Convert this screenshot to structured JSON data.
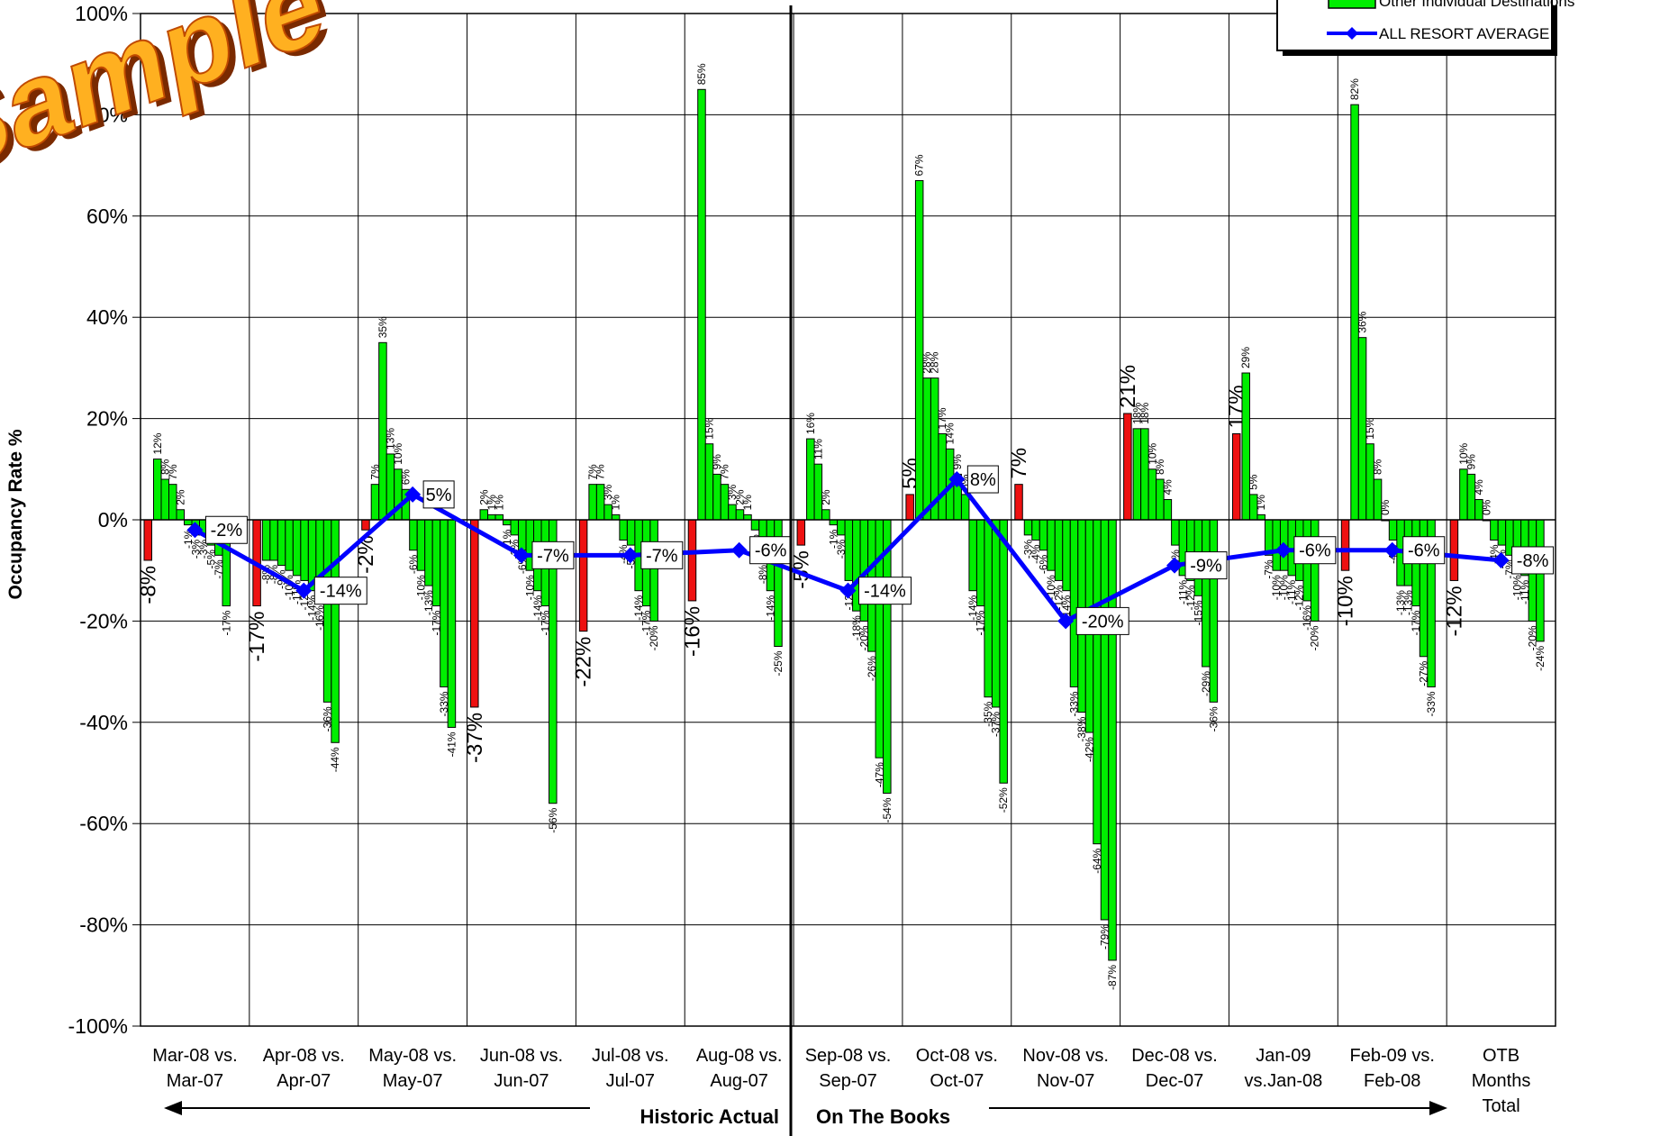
{
  "watermark": "Sample",
  "chart_data": {
    "type": "bar",
    "ylabel": "Occupancy Rate %",
    "ylim": [
      -100,
      100
    ],
    "yticks": [
      "-100%",
      "-80%",
      "-60%",
      "-40%",
      "-20%",
      "0%",
      "20%",
      "40%",
      "60%",
      "80%",
      "100%"
    ],
    "grid": true,
    "legend_position": "top-right",
    "legend": [
      {
        "label": "Other Individual Destinations",
        "color": "#00ee00"
      },
      {
        "label": "ALL RESORT AVERAGE",
        "color": "#0000ff"
      }
    ],
    "categories": [
      [
        "Mar-08 vs.",
        "Mar-07"
      ],
      [
        "Apr-08 vs.",
        "Apr-07"
      ],
      [
        "May-08 vs.",
        "May-07"
      ],
      [
        "Jun-08 vs.",
        "Jun-07"
      ],
      [
        "Jul-08 vs.",
        "Jul-07"
      ],
      [
        "Aug-08 vs.",
        "Aug-07"
      ],
      [
        "Sep-08 vs.",
        "Sep-07"
      ],
      [
        "Oct-08 vs.",
        "Oct-07"
      ],
      [
        "Nov-08 vs.",
        "Nov-07"
      ],
      [
        "Dec-08 vs.",
        "Dec-07"
      ],
      [
        "Jan-09",
        "vs.Jan-08"
      ],
      [
        "Feb-09 vs.",
        "Feb-08"
      ],
      [
        "OTB",
        "Months",
        "Total"
      ]
    ],
    "highlight_values": [
      -8,
      -17,
      -2,
      -37,
      -22,
      -16,
      -5,
      5,
      7,
      21,
      17,
      -10,
      -12
    ],
    "highlight_color": "#ee1111",
    "destination_values": [
      [
        12,
        8,
        7,
        2,
        -1,
        -3,
        -3,
        -5,
        -7,
        -17
      ],
      [
        -8,
        -8,
        -9,
        -10,
        -11,
        -12,
        -14,
        -16,
        -36,
        -44
      ],
      [
        7,
        35,
        13,
        10,
        6,
        -6,
        -10,
        -13,
        -17,
        -33,
        -41
      ],
      [
        2,
        1,
        1,
        -1,
        -3,
        -6,
        -10,
        -14,
        -17,
        -56
      ],
      [
        7,
        7,
        3,
        1,
        -4,
        -5,
        -14,
        -17,
        -20
      ],
      [
        85,
        15,
        9,
        7,
        3,
        2,
        1,
        -2,
        -8,
        -14,
        -25
      ],
      [
        16,
        11,
        2,
        -1,
        -3,
        -12,
        -18,
        -20,
        -26,
        -47,
        -54
      ],
      [
        67,
        28,
        28,
        17,
        14,
        9,
        5,
        -14,
        -17,
        -35,
        -37,
        -52
      ],
      [
        -3,
        -4,
        -6,
        -10,
        -12,
        -14,
        -33,
        -38,
        -42,
        -64,
        -79,
        -87
      ],
      [
        18,
        18,
        10,
        8,
        4,
        -5,
        -11,
        -12,
        -15,
        -29,
        -36
      ],
      [
        29,
        5,
        1,
        -7,
        -10,
        -10,
        -11,
        -12,
        -16,
        -20
      ],
      [
        82,
        36,
        15,
        8,
        0,
        -4,
        -13,
        -13,
        -17,
        -27,
        -33
      ],
      [
        10,
        9,
        4,
        0,
        -4,
        -5,
        -7,
        -10,
        -11,
        -20,
        -24
      ]
    ],
    "series": [
      {
        "name": "ALL RESORT AVERAGE",
        "values": [
          -2,
          -14,
          5,
          -7,
          -7,
          -6,
          -14,
          8,
          -20,
          -9,
          -6,
          -6,
          -8
        ]
      }
    ],
    "annotations": {
      "left_arrow_label": "Historic Actual",
      "right_arrow_label": "On The Books"
    }
  }
}
